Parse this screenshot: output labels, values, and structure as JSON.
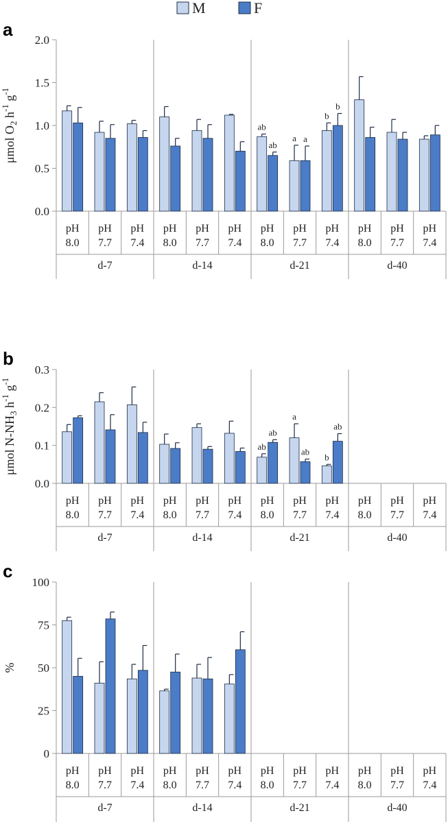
{
  "legend": [
    {
      "label": "M",
      "color": "#c5d6ee"
    },
    {
      "label": "F",
      "color": "#4a7cc7"
    }
  ],
  "colors": {
    "stroke": "#1c2a44",
    "axis": "#9a9a9a"
  },
  "chart_data": [
    {
      "type": "bar",
      "panel": "a",
      "ylabel_parts": [
        "μmol O",
        "2",
        " h",
        "-1",
        " g",
        "-1"
      ],
      "ylim": [
        0,
        2.0
      ],
      "yticks": [
        "0.0",
        "0.5",
        "1.0",
        "1.5",
        "2.0"
      ],
      "ytick_values": [
        0,
        0.5,
        1.0,
        1.5,
        2.0
      ],
      "groups": [
        "d-7",
        "d-14",
        "d-21",
        "d-40"
      ],
      "categories": [
        [
          "pH",
          "8.0"
        ],
        [
          "pH",
          "7.7"
        ],
        [
          "pH",
          "7.4"
        ],
        [
          "pH",
          "8.0"
        ],
        [
          "pH",
          "7.7"
        ],
        [
          "pH",
          "7.4"
        ],
        [
          "pH",
          "8.0"
        ],
        [
          "pH",
          "7.7"
        ],
        [
          "pH",
          "7.4"
        ],
        [
          "pH",
          "8.0"
        ],
        [
          "pH",
          "7.7"
        ],
        [
          "pH",
          "7.4"
        ]
      ],
      "series": [
        {
          "name": "M",
          "values": [
            1.17,
            0.92,
            1.02,
            1.1,
            0.94,
            1.12,
            0.87,
            0.59,
            0.94,
            1.3,
            0.92,
            0.84
          ],
          "errors": [
            0.06,
            0.13,
            0.04,
            0.12,
            0.13,
            0.01,
            0.03,
            0.18,
            0.09,
            0.27,
            0.15,
            0.04
          ],
          "sig": [
            "",
            "",
            "",
            "",
            "",
            "",
            "ab",
            "a",
            "b",
            "",
            "",
            ""
          ]
        },
        {
          "name": "F",
          "values": [
            1.03,
            0.85,
            0.86,
            0.76,
            0.85,
            0.7,
            0.65,
            0.59,
            1.0,
            0.86,
            0.84,
            0.89
          ],
          "errors": [
            0.18,
            0.16,
            0.08,
            0.09,
            0.16,
            0.11,
            0.04,
            0.17,
            0.14,
            0.12,
            0.08,
            0.11
          ],
          "sig": [
            "",
            "",
            "",
            "",
            "",
            "",
            "ab",
            "a",
            "b",
            "",
            "",
            ""
          ]
        }
      ]
    },
    {
      "type": "bar",
      "panel": "b",
      "ylabel_parts": [
        "μmol N-NH",
        "3",
        " h",
        "-1",
        " g",
        "-1"
      ],
      "ylim": [
        0,
        0.3
      ],
      "yticks": [
        "0.0",
        "0.1",
        "0.2",
        "0.3"
      ],
      "ytick_values": [
        0,
        0.1,
        0.2,
        0.3
      ],
      "groups": [
        "d-7",
        "d-14",
        "d-21",
        "d-40"
      ],
      "categories": [
        [
          "pH",
          "8.0"
        ],
        [
          "pH",
          "7.7"
        ],
        [
          "pH",
          "7.4"
        ],
        [
          "pH",
          "8.0"
        ],
        [
          "pH",
          "7.7"
        ],
        [
          "pH",
          "7.4"
        ],
        [
          "pH",
          "8.0"
        ],
        [
          "pH",
          "7.7"
        ],
        [
          "pH",
          "7.4"
        ],
        [
          "pH",
          "8.0"
        ],
        [
          "pH",
          "7.7"
        ],
        [
          "pH",
          "7.4"
        ]
      ],
      "series": [
        {
          "name": "M",
          "values": [
            0.136,
            0.215,
            0.207,
            0.103,
            0.147,
            0.132,
            0.069,
            0.12,
            0.046,
            null,
            null,
            null
          ],
          "errors": [
            0.019,
            0.024,
            0.047,
            0.027,
            0.01,
            0.032,
            0.009,
            0.037,
            0.004,
            null,
            null,
            null
          ],
          "sig": [
            "",
            "",
            "",
            "",
            "",
            "",
            "ab",
            "a",
            "b",
            "",
            "",
            ""
          ]
        },
        {
          "name": "F",
          "values": [
            0.173,
            0.141,
            0.134,
            0.092,
            0.09,
            0.084,
            0.108,
            0.057,
            0.111,
            null,
            null,
            null
          ],
          "errors": [
            0.005,
            0.04,
            0.027,
            0.015,
            0.007,
            0.009,
            0.007,
            0.007,
            0.02,
            null,
            null,
            null
          ],
          "sig": [
            "",
            "",
            "",
            "",
            "",
            "",
            "ab",
            "ab",
            "ab",
            "",
            "",
            ""
          ]
        }
      ]
    },
    {
      "type": "bar",
      "panel": "c",
      "ylabel_parts": [
        "%"
      ],
      "ylim": [
        0,
        100
      ],
      "yticks": [
        "0",
        "25",
        "50",
        "75",
        "100"
      ],
      "ytick_values": [
        0,
        25,
        50,
        75,
        100
      ],
      "groups": [
        "d-7",
        "d-14",
        "d-21",
        "d-40"
      ],
      "categories": [
        [
          "pH",
          "8.0"
        ],
        [
          "pH",
          "7.7"
        ],
        [
          "pH",
          "7.4"
        ],
        [
          "pH",
          "8.0"
        ],
        [
          "pH",
          "7.7"
        ],
        [
          "pH",
          "7.4"
        ],
        [
          "pH",
          "8.0"
        ],
        [
          "pH",
          "7.7"
        ],
        [
          "pH",
          "7.4"
        ],
        [
          "pH",
          "8.0"
        ],
        [
          "pH",
          "7.7"
        ],
        [
          "pH",
          "7.4"
        ]
      ],
      "series": [
        {
          "name": "M",
          "values": [
            77.5,
            41,
            43.5,
            36.5,
            44,
            40.5,
            null,
            null,
            null,
            null,
            null,
            null
          ],
          "errors": [
            2,
            12.5,
            8.5,
            1,
            8,
            5.5,
            null,
            null,
            null,
            null,
            null,
            null
          ],
          "sig": [
            "",
            "",
            "",
            "",
            "",
            "",
            "",
            "",
            "",
            "",
            "",
            ""
          ]
        },
        {
          "name": "F",
          "values": [
            45,
            78.5,
            48.5,
            47.5,
            43.5,
            60.5,
            null,
            null,
            null,
            null,
            null,
            null
          ],
          "errors": [
            10.5,
            4,
            14.5,
            10.5,
            12.5,
            10.5,
            null,
            null,
            null,
            null,
            null,
            null
          ],
          "sig": [
            "",
            "",
            "",
            "",
            "",
            "",
            "",
            "",
            "",
            "",
            "",
            ""
          ]
        }
      ]
    }
  ]
}
